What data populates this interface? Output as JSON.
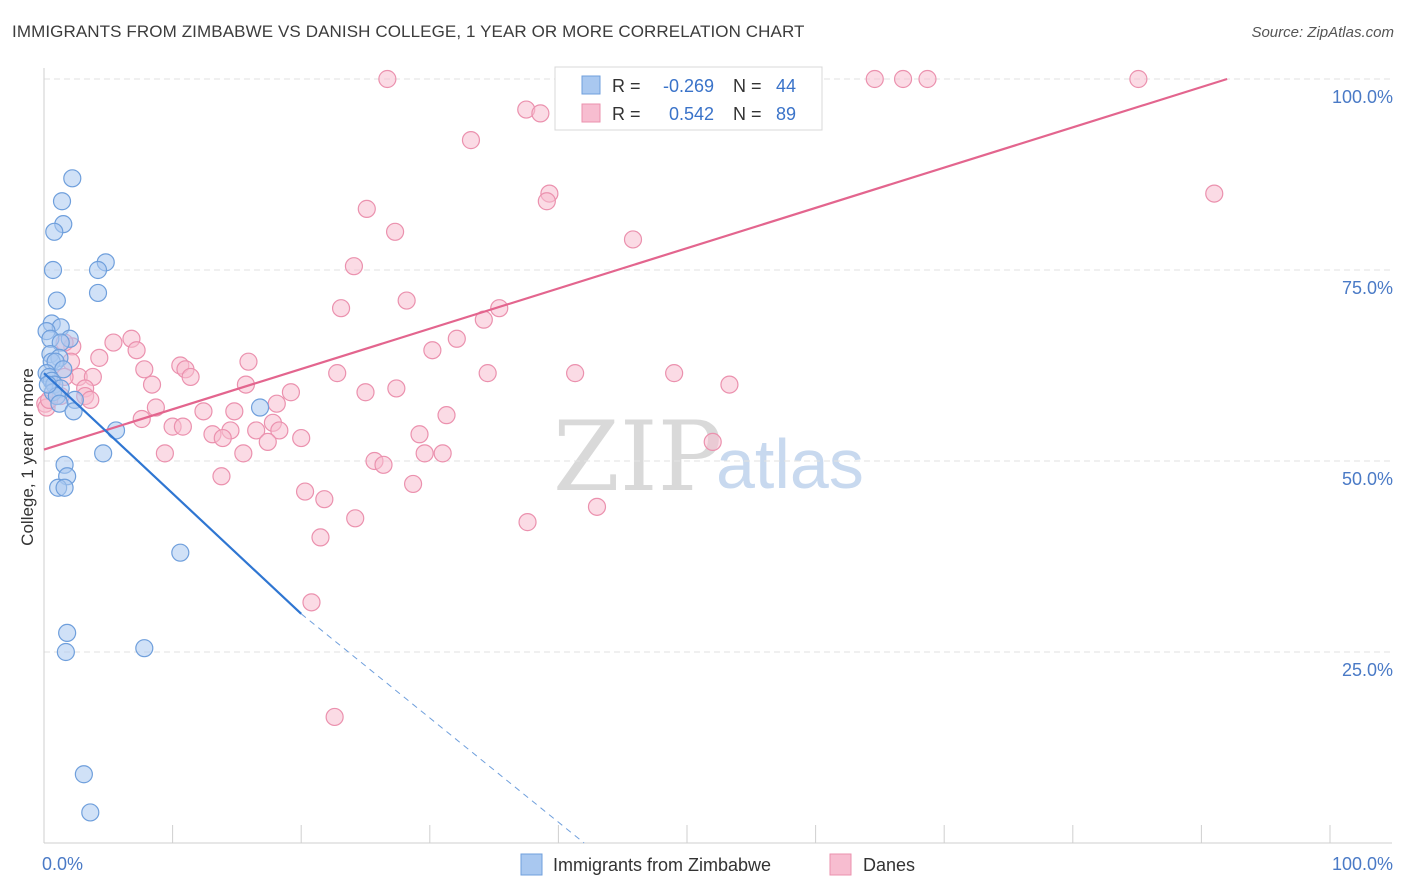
{
  "header": {
    "title": "IMMIGRANTS FROM ZIMBABWE VS DANISH COLLEGE, 1 YEAR OR MORE CORRELATION CHART",
    "source": "Source: ZipAtlas.com"
  },
  "watermark": {
    "zip": "ZIP",
    "atlas": "atlas"
  },
  "colors": {
    "blue_fill": "#a9c8f0",
    "blue_stroke": "#6f9fdc",
    "blue_line": "#2f76d2",
    "pink_fill": "#f7bdd0",
    "pink_stroke": "#eb91ae",
    "pink_line": "#e3658e",
    "grid": "#e2e2e2",
    "tick_text": "#4a7ac6"
  },
  "chart_data": {
    "type": "scatter",
    "xlabel": "",
    "ylabel": "College, 1 year or more",
    "xlim": [
      0,
      100
    ],
    "ylim": [
      0,
      100
    ],
    "x_tick_labels": [
      "0.0%",
      "100.0%"
    ],
    "y_ticks": [
      25,
      50,
      75,
      100
    ],
    "y_tick_labels": [
      "25.0%",
      "50.0%",
      "75.0%",
      "100.0%"
    ],
    "grid": true,
    "legend": {
      "placement": "top-center",
      "entries": [
        {
          "r_label": "R =",
          "r_value": "-0.269",
          "n_label": "N =",
          "n_value": "44"
        },
        {
          "r_label": "R =",
          "r_value": "0.542",
          "n_label": "N =",
          "n_value": "89"
        }
      ]
    },
    "series": [
      {
        "name": "Immigrants from Zimbabwe",
        "trend": {
          "x0": 0,
          "y0": 61.5,
          "x1": 20.0,
          "y1": 30.0,
          "dash_to_x": 42.0,
          "dash_to_y": -3
        },
        "points": [
          [
            2.2,
            87.0
          ],
          [
            1.4,
            84.0
          ],
          [
            1.5,
            81.0
          ],
          [
            0.8,
            80.0
          ],
          [
            0.7,
            75.0
          ],
          [
            4.8,
            76.0
          ],
          [
            4.2,
            75.0
          ],
          [
            4.2,
            72.0
          ],
          [
            1.0,
            71.0
          ],
          [
            0.6,
            68.0
          ],
          [
            1.3,
            67.5
          ],
          [
            0.2,
            67.0
          ],
          [
            0.5,
            66.0
          ],
          [
            2.0,
            66.0
          ],
          [
            1.3,
            65.5
          ],
          [
            0.5,
            64.0
          ],
          [
            1.2,
            63.5
          ],
          [
            0.6,
            63.0
          ],
          [
            0.9,
            63.0
          ],
          [
            1.5,
            62.0
          ],
          [
            0.2,
            61.5
          ],
          [
            0.4,
            61.0
          ],
          [
            0.6,
            60.5
          ],
          [
            0.8,
            60.0
          ],
          [
            1.3,
            59.5
          ],
          [
            0.7,
            59.0
          ],
          [
            1.0,
            58.5
          ],
          [
            2.4,
            58.0
          ],
          [
            1.2,
            57.5
          ],
          [
            16.8,
            57.0
          ],
          [
            2.3,
            56.5
          ],
          [
            5.6,
            54.0
          ],
          [
            4.6,
            51.0
          ],
          [
            1.6,
            49.5
          ],
          [
            1.8,
            48.0
          ],
          [
            1.1,
            46.5
          ],
          [
            1.6,
            46.5
          ],
          [
            10.6,
            38.0
          ],
          [
            1.8,
            27.5
          ],
          [
            1.7,
            25.0
          ],
          [
            7.8,
            25.5
          ],
          [
            3.1,
            9.0
          ],
          [
            3.6,
            4.0
          ],
          [
            0.3,
            60.0
          ]
        ]
      },
      {
        "name": "Danes",
        "trend": {
          "x0": 0,
          "y0": 51.5,
          "x1": 92.0,
          "y1": 100.0
        },
        "points": [
          [
            26.7,
            100.0
          ],
          [
            44.2,
            100.0
          ],
          [
            58.3,
            100.0
          ],
          [
            64.6,
            100.0
          ],
          [
            66.8,
            100.0
          ],
          [
            68.7,
            100.0
          ],
          [
            85.1,
            100.0
          ],
          [
            37.5,
            96.0
          ],
          [
            38.6,
            95.5
          ],
          [
            33.2,
            92.0
          ],
          [
            39.3,
            85.0
          ],
          [
            39.1,
            84.0
          ],
          [
            91.0,
            85.0
          ],
          [
            25.1,
            83.0
          ],
          [
            27.3,
            80.0
          ],
          [
            45.8,
            79.0
          ],
          [
            24.1,
            75.5
          ],
          [
            28.2,
            71.0
          ],
          [
            23.1,
            70.0
          ],
          [
            35.4,
            70.0
          ],
          [
            34.2,
            68.5
          ],
          [
            32.1,
            66.0
          ],
          [
            6.8,
            66.0
          ],
          [
            5.4,
            65.5
          ],
          [
            2.2,
            65.0
          ],
          [
            1.6,
            65.5
          ],
          [
            7.2,
            64.5
          ],
          [
            30.2,
            64.5
          ],
          [
            4.3,
            63.5
          ],
          [
            2.1,
            63.0
          ],
          [
            15.9,
            63.0
          ],
          [
            10.6,
            62.5
          ],
          [
            7.8,
            62.0
          ],
          [
            11.0,
            62.0
          ],
          [
            22.8,
            61.5
          ],
          [
            34.5,
            61.5
          ],
          [
            41.3,
            61.5
          ],
          [
            49.0,
            61.5
          ],
          [
            2.7,
            61.0
          ],
          [
            3.8,
            61.0
          ],
          [
            11.4,
            61.0
          ],
          [
            8.4,
            60.0
          ],
          [
            15.7,
            60.0
          ],
          [
            53.3,
            60.0
          ],
          [
            27.4,
            59.5
          ],
          [
            3.2,
            59.5
          ],
          [
            19.2,
            59.0
          ],
          [
            25.0,
            59.0
          ],
          [
            1.3,
            58.5
          ],
          [
            3.2,
            58.5
          ],
          [
            18.1,
            57.5
          ],
          [
            8.7,
            57.0
          ],
          [
            12.4,
            56.5
          ],
          [
            14.8,
            56.5
          ],
          [
            31.3,
            56.0
          ],
          [
            7.6,
            55.5
          ],
          [
            17.8,
            55.0
          ],
          [
            10.0,
            54.5
          ],
          [
            10.8,
            54.5
          ],
          [
            14.5,
            54.0
          ],
          [
            18.3,
            54.0
          ],
          [
            16.5,
            54.0
          ],
          [
            29.2,
            53.5
          ],
          [
            13.1,
            53.5
          ],
          [
            13.9,
            53.0
          ],
          [
            20.0,
            53.0
          ],
          [
            17.4,
            52.5
          ],
          [
            52.0,
            52.5
          ],
          [
            9.4,
            51.0
          ],
          [
            15.5,
            51.0
          ],
          [
            29.6,
            51.0
          ],
          [
            31.0,
            51.0
          ],
          [
            25.7,
            50.0
          ],
          [
            26.4,
            49.5
          ],
          [
            13.8,
            48.0
          ],
          [
            28.7,
            47.0
          ],
          [
            20.3,
            46.0
          ],
          [
            21.8,
            45.0
          ],
          [
            43.0,
            44.0
          ],
          [
            24.2,
            42.5
          ],
          [
            37.6,
            42.0
          ],
          [
            21.5,
            40.0
          ],
          [
            20.8,
            31.5
          ],
          [
            22.6,
            16.5
          ],
          [
            0.1,
            57.5
          ],
          [
            0.2,
            57.0
          ],
          [
            0.4,
            58.0
          ],
          [
            3.6,
            58.0
          ],
          [
            1.6,
            61.0
          ]
        ]
      }
    ]
  }
}
